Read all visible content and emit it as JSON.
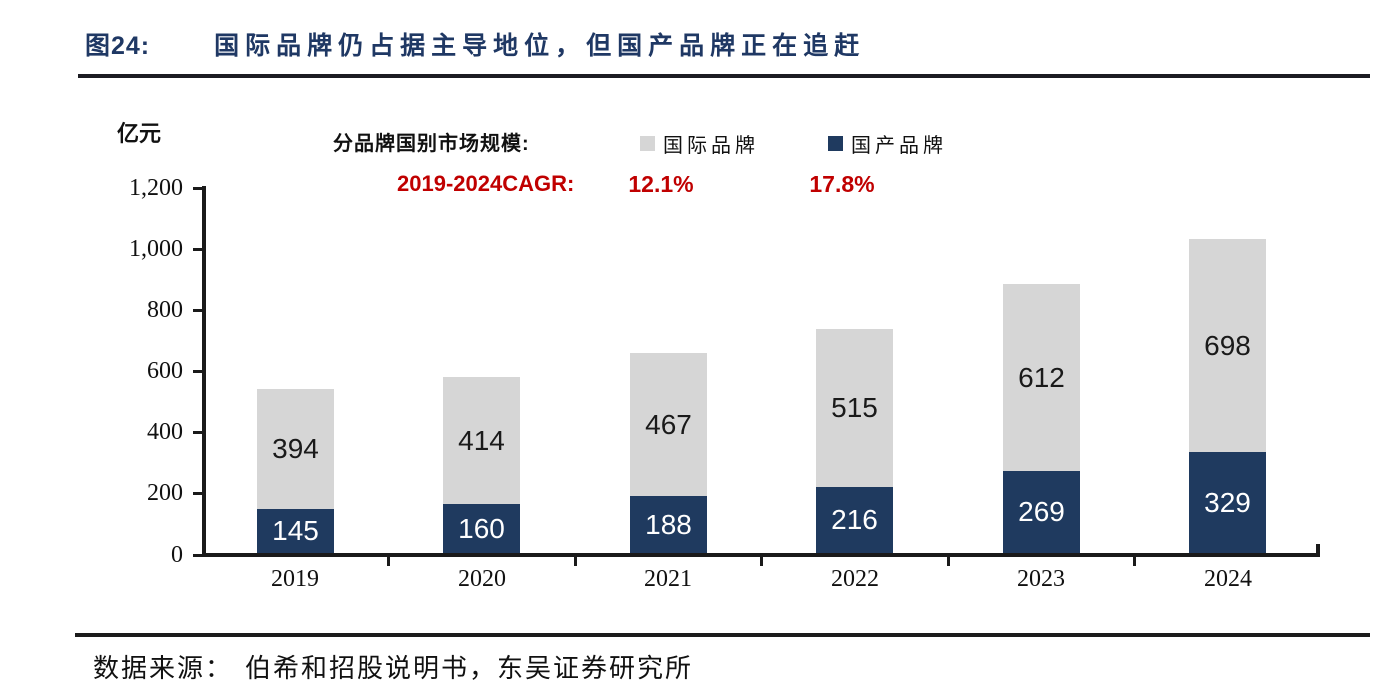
{
  "figure": {
    "number_label": "图24:",
    "title": "国际品牌仍占据主导地位，但国产品牌正在追赶"
  },
  "chart_data": {
    "type": "bar",
    "stacked": true,
    "unit_label": "亿元",
    "legend_heading": "分品牌国别市场规模:",
    "cagr_label": "2019-2024CAGR:",
    "categories": [
      "2019",
      "2020",
      "2021",
      "2022",
      "2023",
      "2024"
    ],
    "series": [
      {
        "name": "国际品牌",
        "color": "#d6d6d6",
        "text_color": "#1a1a1a",
        "values": [
          394,
          414,
          467,
          515,
          612,
          698
        ],
        "cagr": "12.1%"
      },
      {
        "name": "国产品牌",
        "color": "#1f3a5f",
        "text_color": "#ffffff",
        "values": [
          145,
          160,
          188,
          216,
          269,
          329
        ],
        "cagr": "17.8%"
      }
    ],
    "stack_order_bottom_to_top": [
      "国产品牌",
      "国际品牌"
    ],
    "y_ticks": [
      "1,200",
      "1,000",
      "800",
      "600",
      "400",
      "200",
      "0"
    ],
    "ylim": [
      0,
      1200
    ],
    "legend_position": "top",
    "grid": false
  },
  "colors": {
    "title_navy": "#1f3864",
    "cagr_red": "#c00000",
    "axis": "#1a1a1a",
    "international_gray": "#d6d6d6",
    "domestic_navy": "#1f3a5f"
  },
  "source": {
    "label": "数据来源：",
    "text": "伯希和招股说明书，东吴证券研究所"
  }
}
